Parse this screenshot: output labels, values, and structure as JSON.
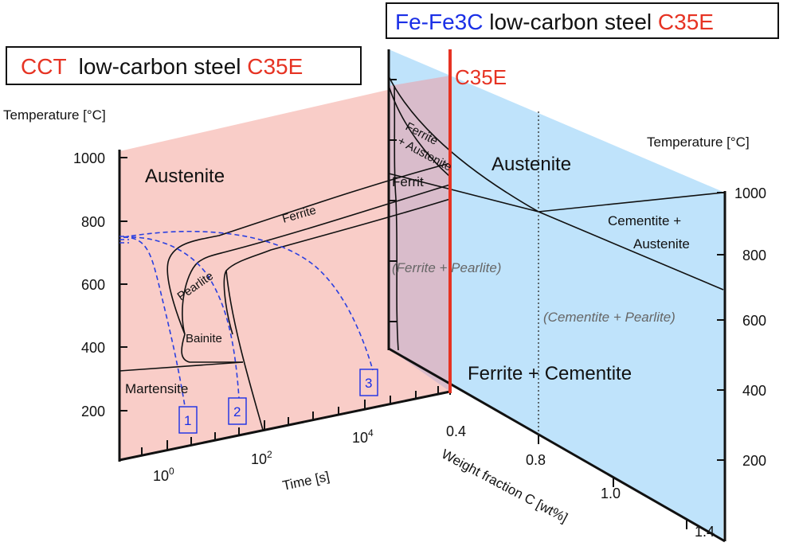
{
  "titles": {
    "right_prefix": "Fe-Fe3C",
    "right_middle": " low-carbon steel ",
    "right_suffix": "C35E",
    "left_prefix": "CCT",
    "left_middle": "  low-carbon steel ",
    "left_suffix": "C35E"
  },
  "cct": {
    "y_axis_label": "Temperature [°C]",
    "y_ticks": [
      "1000",
      "800",
      "600",
      "400",
      "200"
    ],
    "x_axis_label": "Time [s]",
    "x_ticks": {
      "t0": "10",
      "t0_exp": "0",
      "t2": "10",
      "t2_exp": "2",
      "t4": "10",
      "t4_exp": "4"
    },
    "regions": {
      "austenite": "Austenite",
      "ferrite": "Ferrite",
      "pearlite": "Pearlite",
      "bainite": "Bainite",
      "martensite": "Martensite"
    },
    "cooling_curves": [
      "1",
      "2",
      "3"
    ]
  },
  "phase": {
    "alloy_label": "C35E",
    "y_axis_label": "Temperature [°C]",
    "y_ticks": [
      "1000",
      "800",
      "600",
      "400",
      "200"
    ],
    "x_axis_label": "Weight fraction C [wt%]",
    "x_ticks": [
      "0.4",
      "0.8",
      "1.0",
      "1.4"
    ],
    "regions": {
      "austenite": "Austenite",
      "ferrite_austenite_1": "Ferrite",
      "ferrite_austenite_2": "+ Austenite",
      "ferrit": "Ferrit",
      "ferrite_pearlite": "(Ferrite + Pearlite)",
      "cementite_austenite_1": "Cementite +",
      "cementite_austenite_2": "Austenite",
      "cementite_pearlite": "(Cementite + Pearlite)",
      "ferrite_cementite": "Ferrite + Cementite"
    }
  },
  "colors": {
    "cct_fill": "#f9cdc8",
    "phase_fill": "#bfe3fb",
    "overlap_fill": "#d9bccb",
    "alloy_line": "#e63323",
    "accent_red": "#e63323",
    "accent_blue": "#1a2fe6",
    "cooling_line": "#2a3fe0"
  }
}
